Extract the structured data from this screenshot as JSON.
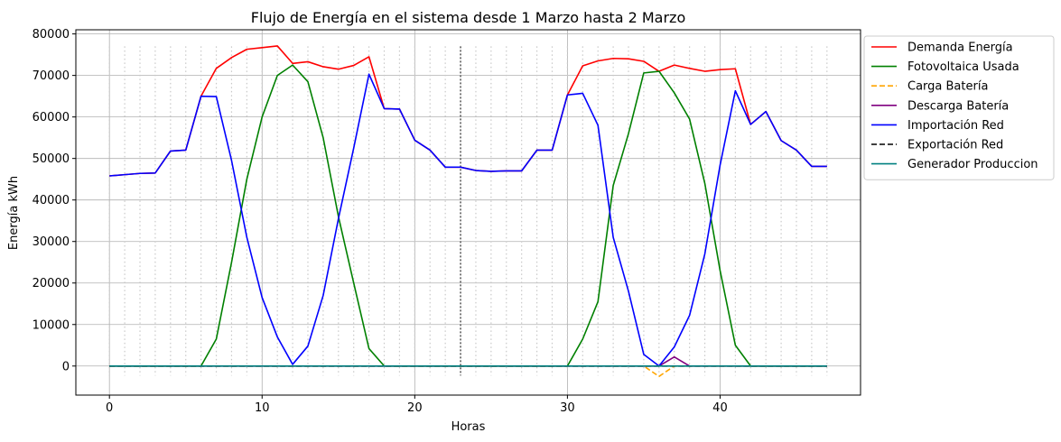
{
  "chart_data": {
    "type": "line",
    "title": "Flujo de Energía en el sistema desde 1 Marzo hasta 2 Marzo",
    "xlabel": "Horas",
    "ylabel": "Energía kWh",
    "xlim": [
      -2.2,
      49.2
    ],
    "ylim": [
      -7000,
      81000
    ],
    "xticks": [
      0,
      10,
      20,
      30,
      40
    ],
    "yticks": [
      0,
      10000,
      20000,
      30000,
      40000,
      50000,
      60000,
      70000,
      80000
    ],
    "grid": true,
    "legend_position": "outside-top-right",
    "hour_markers": {
      "x": [
        0,
        1,
        2,
        3,
        4,
        5,
        6,
        7,
        8,
        9,
        10,
        11,
        12,
        13,
        14,
        15,
        16,
        17,
        18,
        19,
        20,
        21,
        22,
        23,
        24,
        25,
        26,
        27,
        28,
        29,
        30,
        31,
        32,
        33,
        34,
        35,
        36,
        37,
        38,
        39,
        40,
        41,
        42,
        43,
        44,
        45,
        46,
        47
      ],
      "ymin": -2300,
      "ymax": 77000,
      "day_boundary": 23
    },
    "x": [
      0,
      1,
      2,
      3,
      4,
      5,
      6,
      7,
      8,
      9,
      10,
      11,
      12,
      13,
      14,
      15,
      16,
      17,
      18,
      19,
      20,
      21,
      22,
      23,
      24,
      25,
      26,
      27,
      28,
      29,
      30,
      31,
      32,
      33,
      34,
      35,
      36,
      37,
      38,
      39,
      40,
      41,
      42,
      43,
      44,
      45,
      46,
      47
    ],
    "series": [
      {
        "name": "Demanda Energía",
        "color": "#ff0000",
        "dash": "solid",
        "values": [
          45800,
          46100,
          46400,
          46500,
          51800,
          52000,
          65000,
          71700,
          74300,
          76300,
          76700,
          77100,
          72900,
          73300,
          72100,
          71500,
          72400,
          74500,
          62000,
          61900,
          54400,
          52000,
          47900,
          47900,
          47100,
          46900,
          47000,
          47000,
          52000,
          52000,
          65300,
          72300,
          73500,
          74100,
          74000,
          73400,
          71000,
          72500,
          71700,
          71000,
          71400,
          71600,
          58200,
          61300,
          54300,
          52000,
          48100,
          48100
        ]
      },
      {
        "name": "Fotovoltaica Usada",
        "color": "#008000",
        "dash": "solid",
        "values": [
          0,
          0,
          0,
          0,
          0,
          0,
          0,
          6500,
          25000,
          45000,
          60000,
          70000,
          72500,
          68500,
          55000,
          36000,
          20000,
          4200,
          0,
          0,
          0,
          0,
          0,
          0,
          0,
          0,
          0,
          0,
          0,
          0,
          0,
          6500,
          15500,
          43500,
          56000,
          70600,
          71000,
          65800,
          59500,
          44000,
          23000,
          5000,
          0,
          0,
          0,
          0,
          0,
          0
        ]
      },
      {
        "name": "Carga Batería",
        "color": "#ffa500",
        "dash": "dashed",
        "values": [
          0,
          0,
          0,
          0,
          0,
          0,
          0,
          0,
          0,
          0,
          0,
          0,
          0,
          0,
          0,
          0,
          0,
          0,
          0,
          0,
          0,
          0,
          0,
          0,
          0,
          0,
          0,
          0,
          0,
          0,
          0,
          0,
          0,
          0,
          0,
          0,
          -2500,
          0,
          0,
          0,
          0,
          0,
          0,
          0,
          0,
          0,
          0,
          0
        ]
      },
      {
        "name": "Descarga Batería",
        "color": "#800080",
        "dash": "solid",
        "values": [
          0,
          0,
          0,
          0,
          0,
          0,
          0,
          0,
          0,
          0,
          0,
          0,
          0,
          0,
          0,
          0,
          0,
          0,
          0,
          0,
          0,
          0,
          0,
          0,
          0,
          0,
          0,
          0,
          0,
          0,
          0,
          0,
          0,
          0,
          0,
          0,
          0,
          2200,
          0,
          0,
          0,
          0,
          0,
          0,
          0,
          0,
          0,
          0
        ]
      },
      {
        "name": "Importación Red",
        "color": "#0000ff",
        "dash": "solid",
        "values": [
          45800,
          46100,
          46400,
          46500,
          51800,
          52000,
          65000,
          64900,
          49500,
          31000,
          16500,
          7000,
          400,
          4800,
          17000,
          35500,
          52500,
          70300,
          62000,
          61900,
          54400,
          52000,
          47900,
          47900,
          47100,
          46900,
          47000,
          47000,
          52000,
          52000,
          65300,
          65700,
          58000,
          31000,
          18000,
          2800,
          0,
          4600,
          12200,
          27000,
          48400,
          66300,
          58200,
          61300,
          54300,
          52000,
          48100,
          48100
        ]
      },
      {
        "name": "Exportación Red",
        "color": "#000000",
        "dash": "dashed",
        "values": [
          0,
          0,
          0,
          0,
          0,
          0,
          0,
          0,
          0,
          0,
          0,
          0,
          0,
          0,
          0,
          0,
          0,
          0,
          0,
          0,
          0,
          0,
          0,
          0,
          0,
          0,
          0,
          0,
          0,
          0,
          0,
          0,
          0,
          0,
          0,
          0,
          0,
          0,
          0,
          0,
          0,
          0,
          0,
          0,
          0,
          0,
          0,
          0
        ]
      },
      {
        "name": "Generador Produccion",
        "color": "#008080",
        "dash": "solid",
        "values": [
          0,
          0,
          0,
          0,
          0,
          0,
          0,
          0,
          0,
          0,
          0,
          0,
          0,
          0,
          0,
          0,
          0,
          0,
          0,
          0,
          0,
          0,
          0,
          0,
          0,
          0,
          0,
          0,
          0,
          0,
          0,
          0,
          0,
          0,
          0,
          0,
          0,
          0,
          0,
          0,
          0,
          0,
          0,
          0,
          0,
          0,
          0,
          0
        ]
      }
    ]
  }
}
